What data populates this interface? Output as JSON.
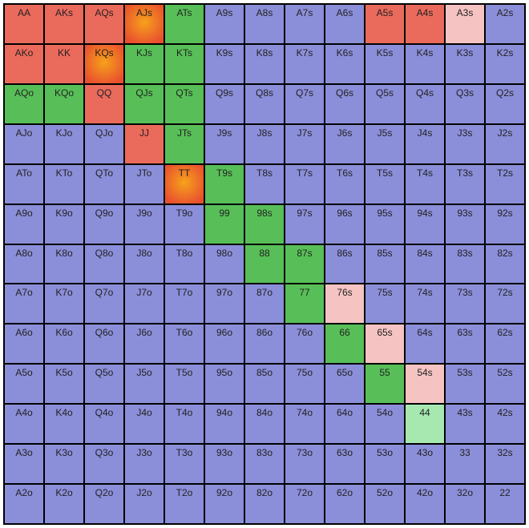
{
  "type": "heatmap",
  "description": "Poker starting-hand range chart (13x13)",
  "ranks": [
    "A",
    "K",
    "Q",
    "J",
    "T",
    "9",
    "8",
    "7",
    "6",
    "5",
    "4",
    "3",
    "2"
  ],
  "font_family": "Verdana",
  "label_fontsize": 12,
  "label_color": "#222222",
  "grid_border_color": "#000000",
  "actions": {
    "fold": {
      "color": "#8b8fd9"
    },
    "call": {
      "color": "#58bf58"
    },
    "raise": {
      "color": "#ea6a5c"
    },
    "raise_grad": {
      "gradient": [
        "#f6a21b",
        "#e94e2f"
      ]
    },
    "mix_light_red": {
      "color": "#f6c3c3"
    },
    "mix_light_green": {
      "color": "#a6e8b0"
    }
  },
  "cells": [
    {
      "r": 0,
      "c": 0,
      "label": "AA",
      "action": "raise"
    },
    {
      "r": 0,
      "c": 1,
      "label": "AKs",
      "action": "raise"
    },
    {
      "r": 0,
      "c": 2,
      "label": "AQs",
      "action": "raise"
    },
    {
      "r": 0,
      "c": 3,
      "label": "AJs",
      "action": "raise_grad"
    },
    {
      "r": 0,
      "c": 4,
      "label": "ATs",
      "action": "call"
    },
    {
      "r": 0,
      "c": 5,
      "label": "A9s",
      "action": "fold"
    },
    {
      "r": 0,
      "c": 6,
      "label": "A8s",
      "action": "fold"
    },
    {
      "r": 0,
      "c": 7,
      "label": "A7s",
      "action": "fold"
    },
    {
      "r": 0,
      "c": 8,
      "label": "A6s",
      "action": "fold"
    },
    {
      "r": 0,
      "c": 9,
      "label": "A5s",
      "action": "raise"
    },
    {
      "r": 0,
      "c": 10,
      "label": "A4s",
      "action": "raise"
    },
    {
      "r": 0,
      "c": 11,
      "label": "A3s",
      "action": "mix_light_red"
    },
    {
      "r": 0,
      "c": 12,
      "label": "A2s",
      "action": "fold"
    },
    {
      "r": 1,
      "c": 0,
      "label": "AKo",
      "action": "raise"
    },
    {
      "r": 1,
      "c": 1,
      "label": "KK",
      "action": "raise"
    },
    {
      "r": 1,
      "c": 2,
      "label": "KQs",
      "action": "raise_grad"
    },
    {
      "r": 1,
      "c": 3,
      "label": "KJs",
      "action": "call"
    },
    {
      "r": 1,
      "c": 4,
      "label": "KTs",
      "action": "call"
    },
    {
      "r": 1,
      "c": 5,
      "label": "K9s",
      "action": "fold"
    },
    {
      "r": 1,
      "c": 6,
      "label": "K8s",
      "action": "fold"
    },
    {
      "r": 1,
      "c": 7,
      "label": "K7s",
      "action": "fold"
    },
    {
      "r": 1,
      "c": 8,
      "label": "K6s",
      "action": "fold"
    },
    {
      "r": 1,
      "c": 9,
      "label": "K5s",
      "action": "fold"
    },
    {
      "r": 1,
      "c": 10,
      "label": "K4s",
      "action": "fold"
    },
    {
      "r": 1,
      "c": 11,
      "label": "K3s",
      "action": "fold"
    },
    {
      "r": 1,
      "c": 12,
      "label": "K2s",
      "action": "fold"
    },
    {
      "r": 2,
      "c": 0,
      "label": "AQo",
      "action": "call"
    },
    {
      "r": 2,
      "c": 1,
      "label": "KQo",
      "action": "call"
    },
    {
      "r": 2,
      "c": 2,
      "label": "QQ",
      "action": "raise"
    },
    {
      "r": 2,
      "c": 3,
      "label": "QJs",
      "action": "call"
    },
    {
      "r": 2,
      "c": 4,
      "label": "QTs",
      "action": "call"
    },
    {
      "r": 2,
      "c": 5,
      "label": "Q9s",
      "action": "fold"
    },
    {
      "r": 2,
      "c": 6,
      "label": "Q8s",
      "action": "fold"
    },
    {
      "r": 2,
      "c": 7,
      "label": "Q7s",
      "action": "fold"
    },
    {
      "r": 2,
      "c": 8,
      "label": "Q6s",
      "action": "fold"
    },
    {
      "r": 2,
      "c": 9,
      "label": "Q5s",
      "action": "fold"
    },
    {
      "r": 2,
      "c": 10,
      "label": "Q4s",
      "action": "fold"
    },
    {
      "r": 2,
      "c": 11,
      "label": "Q3s",
      "action": "fold"
    },
    {
      "r": 2,
      "c": 12,
      "label": "Q2s",
      "action": "fold"
    },
    {
      "r": 3,
      "c": 0,
      "label": "AJo",
      "action": "fold"
    },
    {
      "r": 3,
      "c": 1,
      "label": "KJo",
      "action": "fold"
    },
    {
      "r": 3,
      "c": 2,
      "label": "QJo",
      "action": "fold"
    },
    {
      "r": 3,
      "c": 3,
      "label": "JJ",
      "action": "raise"
    },
    {
      "r": 3,
      "c": 4,
      "label": "JTs",
      "action": "call"
    },
    {
      "r": 3,
      "c": 5,
      "label": "J9s",
      "action": "fold"
    },
    {
      "r": 3,
      "c": 6,
      "label": "J8s",
      "action": "fold"
    },
    {
      "r": 3,
      "c": 7,
      "label": "J7s",
      "action": "fold"
    },
    {
      "r": 3,
      "c": 8,
      "label": "J6s",
      "action": "fold"
    },
    {
      "r": 3,
      "c": 9,
      "label": "J5s",
      "action": "fold"
    },
    {
      "r": 3,
      "c": 10,
      "label": "J4s",
      "action": "fold"
    },
    {
      "r": 3,
      "c": 11,
      "label": "J3s",
      "action": "fold"
    },
    {
      "r": 3,
      "c": 12,
      "label": "J2s",
      "action": "fold"
    },
    {
      "r": 4,
      "c": 0,
      "label": "ATo",
      "action": "fold"
    },
    {
      "r": 4,
      "c": 1,
      "label": "KTo",
      "action": "fold"
    },
    {
      "r": 4,
      "c": 2,
      "label": "QTo",
      "action": "fold"
    },
    {
      "r": 4,
      "c": 3,
      "label": "JTo",
      "action": "fold"
    },
    {
      "r": 4,
      "c": 4,
      "label": "TT",
      "action": "raise_grad"
    },
    {
      "r": 4,
      "c": 5,
      "label": "T9s",
      "action": "call"
    },
    {
      "r": 4,
      "c": 6,
      "label": "T8s",
      "action": "fold"
    },
    {
      "r": 4,
      "c": 7,
      "label": "T7s",
      "action": "fold"
    },
    {
      "r": 4,
      "c": 8,
      "label": "T6s",
      "action": "fold"
    },
    {
      "r": 4,
      "c": 9,
      "label": "T5s",
      "action": "fold"
    },
    {
      "r": 4,
      "c": 10,
      "label": "T4s",
      "action": "fold"
    },
    {
      "r": 4,
      "c": 11,
      "label": "T3s",
      "action": "fold"
    },
    {
      "r": 4,
      "c": 12,
      "label": "T2s",
      "action": "fold"
    },
    {
      "r": 5,
      "c": 0,
      "label": "A9o",
      "action": "fold"
    },
    {
      "r": 5,
      "c": 1,
      "label": "K9o",
      "action": "fold"
    },
    {
      "r": 5,
      "c": 2,
      "label": "Q9o",
      "action": "fold"
    },
    {
      "r": 5,
      "c": 3,
      "label": "J9o",
      "action": "fold"
    },
    {
      "r": 5,
      "c": 4,
      "label": "T9o",
      "action": "fold"
    },
    {
      "r": 5,
      "c": 5,
      "label": "99",
      "action": "call"
    },
    {
      "r": 5,
      "c": 6,
      "label": "98s",
      "action": "call"
    },
    {
      "r": 5,
      "c": 7,
      "label": "97s",
      "action": "fold"
    },
    {
      "r": 5,
      "c": 8,
      "label": "96s",
      "action": "fold"
    },
    {
      "r": 5,
      "c": 9,
      "label": "95s",
      "action": "fold"
    },
    {
      "r": 5,
      "c": 10,
      "label": "94s",
      "action": "fold"
    },
    {
      "r": 5,
      "c": 11,
      "label": "93s",
      "action": "fold"
    },
    {
      "r": 5,
      "c": 12,
      "label": "92s",
      "action": "fold"
    },
    {
      "r": 6,
      "c": 0,
      "label": "A8o",
      "action": "fold"
    },
    {
      "r": 6,
      "c": 1,
      "label": "K8o",
      "action": "fold"
    },
    {
      "r": 6,
      "c": 2,
      "label": "Q8o",
      "action": "fold"
    },
    {
      "r": 6,
      "c": 3,
      "label": "J8o",
      "action": "fold"
    },
    {
      "r": 6,
      "c": 4,
      "label": "T8o",
      "action": "fold"
    },
    {
      "r": 6,
      "c": 5,
      "label": "98o",
      "action": "fold"
    },
    {
      "r": 6,
      "c": 6,
      "label": "88",
      "action": "call"
    },
    {
      "r": 6,
      "c": 7,
      "label": "87s",
      "action": "call"
    },
    {
      "r": 6,
      "c": 8,
      "label": "86s",
      "action": "fold"
    },
    {
      "r": 6,
      "c": 9,
      "label": "85s",
      "action": "fold"
    },
    {
      "r": 6,
      "c": 10,
      "label": "84s",
      "action": "fold"
    },
    {
      "r": 6,
      "c": 11,
      "label": "83s",
      "action": "fold"
    },
    {
      "r": 6,
      "c": 12,
      "label": "82s",
      "action": "fold"
    },
    {
      "r": 7,
      "c": 0,
      "label": "A7o",
      "action": "fold"
    },
    {
      "r": 7,
      "c": 1,
      "label": "K7o",
      "action": "fold"
    },
    {
      "r": 7,
      "c": 2,
      "label": "Q7o",
      "action": "fold"
    },
    {
      "r": 7,
      "c": 3,
      "label": "J7o",
      "action": "fold"
    },
    {
      "r": 7,
      "c": 4,
      "label": "T7o",
      "action": "fold"
    },
    {
      "r": 7,
      "c": 5,
      "label": "97o",
      "action": "fold"
    },
    {
      "r": 7,
      "c": 6,
      "label": "87o",
      "action": "fold"
    },
    {
      "r": 7,
      "c": 7,
      "label": "77",
      "action": "call"
    },
    {
      "r": 7,
      "c": 8,
      "label": "76s",
      "action": "mix_light_red"
    },
    {
      "r": 7,
      "c": 9,
      "label": "75s",
      "action": "fold"
    },
    {
      "r": 7,
      "c": 10,
      "label": "74s",
      "action": "fold"
    },
    {
      "r": 7,
      "c": 11,
      "label": "73s",
      "action": "fold"
    },
    {
      "r": 7,
      "c": 12,
      "label": "72s",
      "action": "fold"
    },
    {
      "r": 8,
      "c": 0,
      "label": "A6o",
      "action": "fold"
    },
    {
      "r": 8,
      "c": 1,
      "label": "K6o",
      "action": "fold"
    },
    {
      "r": 8,
      "c": 2,
      "label": "Q6o",
      "action": "fold"
    },
    {
      "r": 8,
      "c": 3,
      "label": "J6o",
      "action": "fold"
    },
    {
      "r": 8,
      "c": 4,
      "label": "T6o",
      "action": "fold"
    },
    {
      "r": 8,
      "c": 5,
      "label": "96o",
      "action": "fold"
    },
    {
      "r": 8,
      "c": 6,
      "label": "86o",
      "action": "fold"
    },
    {
      "r": 8,
      "c": 7,
      "label": "76o",
      "action": "fold"
    },
    {
      "r": 8,
      "c": 8,
      "label": "66",
      "action": "call"
    },
    {
      "r": 8,
      "c": 9,
      "label": "65s",
      "action": "mix_light_red"
    },
    {
      "r": 8,
      "c": 10,
      "label": "64s",
      "action": "fold"
    },
    {
      "r": 8,
      "c": 11,
      "label": "63s",
      "action": "fold"
    },
    {
      "r": 8,
      "c": 12,
      "label": "62s",
      "action": "fold"
    },
    {
      "r": 9,
      "c": 0,
      "label": "A5o",
      "action": "fold"
    },
    {
      "r": 9,
      "c": 1,
      "label": "K5o",
      "action": "fold"
    },
    {
      "r": 9,
      "c": 2,
      "label": "Q5o",
      "action": "fold"
    },
    {
      "r": 9,
      "c": 3,
      "label": "J5o",
      "action": "fold"
    },
    {
      "r": 9,
      "c": 4,
      "label": "T5o",
      "action": "fold"
    },
    {
      "r": 9,
      "c": 5,
      "label": "95o",
      "action": "fold"
    },
    {
      "r": 9,
      "c": 6,
      "label": "85o",
      "action": "fold"
    },
    {
      "r": 9,
      "c": 7,
      "label": "75o",
      "action": "fold"
    },
    {
      "r": 9,
      "c": 8,
      "label": "65o",
      "action": "fold"
    },
    {
      "r": 9,
      "c": 9,
      "label": "55",
      "action": "call"
    },
    {
      "r": 9,
      "c": 10,
      "label": "54s",
      "action": "mix_light_red"
    },
    {
      "r": 9,
      "c": 11,
      "label": "53s",
      "action": "fold"
    },
    {
      "r": 9,
      "c": 12,
      "label": "52s",
      "action": "fold"
    },
    {
      "r": 10,
      "c": 0,
      "label": "A4o",
      "action": "fold"
    },
    {
      "r": 10,
      "c": 1,
      "label": "K4o",
      "action": "fold"
    },
    {
      "r": 10,
      "c": 2,
      "label": "Q4o",
      "action": "fold"
    },
    {
      "r": 10,
      "c": 3,
      "label": "J4o",
      "action": "fold"
    },
    {
      "r": 10,
      "c": 4,
      "label": "T4o",
      "action": "fold"
    },
    {
      "r": 10,
      "c": 5,
      "label": "94o",
      "action": "fold"
    },
    {
      "r": 10,
      "c": 6,
      "label": "84o",
      "action": "fold"
    },
    {
      "r": 10,
      "c": 7,
      "label": "74o",
      "action": "fold"
    },
    {
      "r": 10,
      "c": 8,
      "label": "64o",
      "action": "fold"
    },
    {
      "r": 10,
      "c": 9,
      "label": "54o",
      "action": "fold"
    },
    {
      "r": 10,
      "c": 10,
      "label": "44",
      "action": "mix_light_green"
    },
    {
      "r": 10,
      "c": 11,
      "label": "43s",
      "action": "fold"
    },
    {
      "r": 10,
      "c": 12,
      "label": "42s",
      "action": "fold"
    },
    {
      "r": 11,
      "c": 0,
      "label": "A3o",
      "action": "fold"
    },
    {
      "r": 11,
      "c": 1,
      "label": "K3o",
      "action": "fold"
    },
    {
      "r": 11,
      "c": 2,
      "label": "Q3o",
      "action": "fold"
    },
    {
      "r": 11,
      "c": 3,
      "label": "J3o",
      "action": "fold"
    },
    {
      "r": 11,
      "c": 4,
      "label": "T3o",
      "action": "fold"
    },
    {
      "r": 11,
      "c": 5,
      "label": "93o",
      "action": "fold"
    },
    {
      "r": 11,
      "c": 6,
      "label": "83o",
      "action": "fold"
    },
    {
      "r": 11,
      "c": 7,
      "label": "73o",
      "action": "fold"
    },
    {
      "r": 11,
      "c": 8,
      "label": "63o",
      "action": "fold"
    },
    {
      "r": 11,
      "c": 9,
      "label": "53o",
      "action": "fold"
    },
    {
      "r": 11,
      "c": 10,
      "label": "43o",
      "action": "fold"
    },
    {
      "r": 11,
      "c": 11,
      "label": "33",
      "action": "fold"
    },
    {
      "r": 11,
      "c": 12,
      "label": "32s",
      "action": "fold"
    },
    {
      "r": 12,
      "c": 0,
      "label": "A2o",
      "action": "fold"
    },
    {
      "r": 12,
      "c": 1,
      "label": "K2o",
      "action": "fold"
    },
    {
      "r": 12,
      "c": 2,
      "label": "Q2o",
      "action": "fold"
    },
    {
      "r": 12,
      "c": 3,
      "label": "J2o",
      "action": "fold"
    },
    {
      "r": 12,
      "c": 4,
      "label": "T2o",
      "action": "fold"
    },
    {
      "r": 12,
      "c": 5,
      "label": "92o",
      "action": "fold"
    },
    {
      "r": 12,
      "c": 6,
      "label": "82o",
      "action": "fold"
    },
    {
      "r": 12,
      "c": 7,
      "label": "72o",
      "action": "fold"
    },
    {
      "r": 12,
      "c": 8,
      "label": "62o",
      "action": "fold"
    },
    {
      "r": 12,
      "c": 9,
      "label": "52o",
      "action": "fold"
    },
    {
      "r": 12,
      "c": 10,
      "label": "42o",
      "action": "fold"
    },
    {
      "r": 12,
      "c": 11,
      "label": "32o",
      "action": "fold"
    },
    {
      "r": 12,
      "c": 12,
      "label": "22",
      "action": "fold"
    }
  ]
}
